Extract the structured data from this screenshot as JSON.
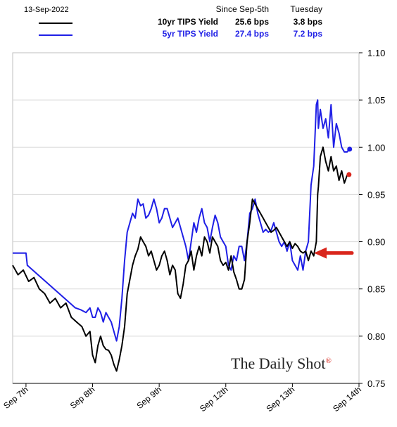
{
  "header": {
    "date": "13-Sep-2022",
    "since_label": "Since Sep-5th",
    "tuesday_label": "Tuesday"
  },
  "legend": [
    {
      "name": "10yr TIPS Yield",
      "since": "25.6 bps",
      "tuesday": "3.8 bps",
      "color": "#000000"
    },
    {
      "name": "5yr TIPS Yield",
      "since": "27.4 bps",
      "tuesday": "7.2 bps",
      "color": "#1f1fe6"
    }
  ],
  "watermark": "The Daily Shot",
  "watermark_mark": "®",
  "annotation": {
    "type": "arrow",
    "color": "#d9261c",
    "points_to_y": 0.888
  },
  "chart_data": {
    "type": "line",
    "ylim": [
      0.75,
      1.1
    ],
    "y_axis_side": "right",
    "yticks": [
      0.75,
      0.8,
      0.85,
      0.9,
      0.95,
      1.0,
      1.05,
      1.1
    ],
    "ytick_labels": [
      "0.75",
      "0.80",
      "0.85",
      "0.90",
      "0.95",
      "1.00",
      "1.05",
      "1.10"
    ],
    "xlim": [
      -0.2,
      5.0
    ],
    "xticks": [
      0,
      1,
      2,
      3,
      4,
      5
    ],
    "xtick_labels": [
      "Sep 7th",
      "Sep 8th",
      "Sep 9th",
      "Sep 12th",
      "Sep 13th",
      "Sep 14th"
    ],
    "grid": "horizontal",
    "series": [
      {
        "name": "10yr TIPS Yield",
        "color": "#000000",
        "x": [
          -0.2,
          -0.12,
          -0.04,
          0.04,
          0.12,
          0.2,
          0.28,
          0.36,
          0.44,
          0.52,
          0.6,
          0.68,
          0.76,
          0.84,
          0.9,
          0.96,
          1.0,
          1.04,
          1.08,
          1.12,
          1.16,
          1.2,
          1.24,
          1.28,
          1.32,
          1.36,
          1.4,
          1.44,
          1.48,
          1.52,
          1.56,
          1.6,
          1.64,
          1.68,
          1.72,
          1.76,
          1.8,
          1.84,
          1.88,
          1.92,
          1.96,
          2.0,
          2.04,
          2.08,
          2.12,
          2.16,
          2.2,
          2.24,
          2.28,
          2.32,
          2.36,
          2.4,
          2.44,
          2.48,
          2.52,
          2.56,
          2.6,
          2.64,
          2.68,
          2.72,
          2.76,
          2.8,
          2.84,
          2.88,
          2.92,
          2.96,
          3.0,
          3.04,
          3.08,
          3.12,
          3.16,
          3.2,
          3.24,
          3.28,
          3.32,
          3.36,
          3.4,
          3.44,
          3.48,
          3.52,
          3.56,
          3.6,
          3.64,
          3.68,
          3.72,
          3.76,
          3.8,
          3.84,
          3.88,
          3.92,
          3.96,
          4.0,
          4.04,
          4.08,
          4.12,
          4.16,
          4.2,
          4.24,
          4.28,
          4.32,
          4.36,
          4.38,
          4.39,
          4.42,
          4.46,
          4.5,
          4.54,
          4.58,
          4.62,
          4.66,
          4.7,
          4.74,
          4.78,
          4.82,
          4.85
        ],
        "y": [
          0.875,
          0.865,
          0.87,
          0.858,
          0.862,
          0.85,
          0.845,
          0.835,
          0.84,
          0.83,
          0.835,
          0.82,
          0.815,
          0.81,
          0.8,
          0.805,
          0.78,
          0.772,
          0.79,
          0.8,
          0.79,
          0.786,
          0.785,
          0.78,
          0.77,
          0.763,
          0.775,
          0.79,
          0.81,
          0.845,
          0.86,
          0.875,
          0.885,
          0.892,
          0.905,
          0.9,
          0.895,
          0.885,
          0.89,
          0.88,
          0.87,
          0.875,
          0.885,
          0.89,
          0.88,
          0.865,
          0.875,
          0.87,
          0.845,
          0.84,
          0.855,
          0.875,
          0.88,
          0.89,
          0.87,
          0.885,
          0.895,
          0.885,
          0.905,
          0.9,
          0.888,
          0.905,
          0.9,
          0.895,
          0.88,
          0.875,
          0.878,
          0.87,
          0.885,
          0.868,
          0.86,
          0.85,
          0.85,
          0.86,
          0.9,
          0.92,
          0.945,
          0.94,
          0.935,
          0.93,
          0.925,
          0.92,
          0.915,
          0.91,
          0.912,
          0.915,
          0.91,
          0.905,
          0.9,
          0.895,
          0.9,
          0.893,
          0.898,
          0.895,
          0.89,
          0.888,
          0.89,
          0.88,
          0.89,
          0.885,
          0.9,
          0.95,
          0.958,
          0.99,
          1.0,
          0.985,
          0.975,
          0.99,
          0.975,
          0.98,
          0.965,
          0.975,
          0.962,
          0.97,
          0.971
        ]
      },
      {
        "name": "5yr TIPS Yield",
        "color": "#1f1fe6",
        "x": [
          -0.2,
          0.0,
          0.02,
          0.1,
          0.18,
          0.26,
          0.34,
          0.42,
          0.5,
          0.58,
          0.66,
          0.74,
          0.82,
          0.9,
          0.96,
          1.0,
          1.04,
          1.08,
          1.12,
          1.16,
          1.2,
          1.24,
          1.28,
          1.32,
          1.36,
          1.4,
          1.44,
          1.48,
          1.52,
          1.56,
          1.6,
          1.64,
          1.68,
          1.72,
          1.76,
          1.8,
          1.84,
          1.88,
          1.92,
          1.96,
          2.0,
          2.04,
          2.08,
          2.12,
          2.16,
          2.2,
          2.24,
          2.28,
          2.32,
          2.36,
          2.4,
          2.44,
          2.48,
          2.52,
          2.56,
          2.6,
          2.64,
          2.68,
          2.72,
          2.76,
          2.8,
          2.84,
          2.88,
          2.92,
          2.96,
          3.0,
          3.04,
          3.08,
          3.12,
          3.16,
          3.2,
          3.24,
          3.28,
          3.32,
          3.36,
          3.4,
          3.44,
          3.48,
          3.52,
          3.56,
          3.6,
          3.64,
          3.68,
          3.72,
          3.76,
          3.8,
          3.84,
          3.88,
          3.92,
          3.96,
          4.0,
          4.04,
          4.08,
          4.12,
          4.16,
          4.2,
          4.24,
          4.28,
          4.32,
          4.36,
          4.38,
          4.39,
          4.42,
          4.46,
          4.5,
          4.54,
          4.58,
          4.62,
          4.66,
          4.7,
          4.74,
          4.78,
          4.82,
          4.86
        ],
        "y": [
          0.888,
          0.888,
          0.875,
          0.87,
          0.865,
          0.86,
          0.855,
          0.85,
          0.845,
          0.84,
          0.835,
          0.83,
          0.828,
          0.825,
          0.83,
          0.82,
          0.82,
          0.83,
          0.825,
          0.815,
          0.825,
          0.82,
          0.815,
          0.805,
          0.795,
          0.81,
          0.84,
          0.88,
          0.91,
          0.92,
          0.93,
          0.925,
          0.945,
          0.938,
          0.94,
          0.925,
          0.928,
          0.935,
          0.945,
          0.935,
          0.92,
          0.925,
          0.935,
          0.935,
          0.925,
          0.915,
          0.92,
          0.925,
          0.915,
          0.905,
          0.895,
          0.88,
          0.9,
          0.92,
          0.91,
          0.925,
          0.935,
          0.92,
          0.915,
          0.9,
          0.915,
          0.928,
          0.92,
          0.905,
          0.9,
          0.895,
          0.875,
          0.87,
          0.885,
          0.88,
          0.895,
          0.895,
          0.88,
          0.9,
          0.93,
          0.935,
          0.945,
          0.93,
          0.92,
          0.91,
          0.913,
          0.91,
          0.912,
          0.92,
          0.91,
          0.9,
          0.895,
          0.9,
          0.89,
          0.9,
          0.88,
          0.875,
          0.87,
          0.885,
          0.87,
          0.89,
          0.9,
          0.96,
          0.98,
          1.045,
          1.05,
          1.02,
          1.04,
          1.02,
          1.03,
          1.01,
          1.045,
          1.0,
          1.025,
          1.015,
          1.0,
          0.995,
          0.995,
          0.998
        ]
      }
    ],
    "end_markers": true
  }
}
